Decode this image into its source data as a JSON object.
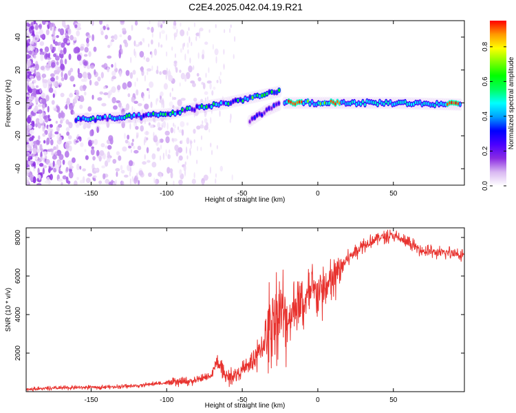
{
  "figure": {
    "title": "C2E4.2025.042.04.19.R21"
  },
  "chart_data": [
    {
      "type": "heatmap",
      "name": "spectrogram",
      "xlabel": "Height of straight line (km)",
      "ylabel": "Frequency (Hz)",
      "xlim": [
        -193,
        97
      ],
      "ylim": [
        -50,
        50
      ],
      "xticks": [
        -150,
        -100,
        -50,
        0,
        50
      ],
      "xtick_labels": [
        "-150",
        "-100",
        "-50",
        "0",
        "50"
      ],
      "yticks": [
        -40,
        -20,
        0,
        20,
        40
      ],
      "ytick_labels": [
        "-40",
        "-20",
        "0",
        "20",
        "40"
      ],
      "ridge": [
        {
          "x": -160,
          "y": -10
        },
        {
          "x": -130,
          "y": -9
        },
        {
          "x": -100,
          "y": -7
        },
        {
          "x": -80,
          "y": -3
        },
        {
          "x": -60,
          "y": 0
        },
        {
          "x": -40,
          "y": 4
        },
        {
          "x": -25,
          "y": 7
        },
        {
          "x": -22,
          "y": 0
        },
        {
          "x": 0,
          "y": 0
        },
        {
          "x": 50,
          "y": 0
        },
        {
          "x": 95,
          "y": -1
        }
      ],
      "ridge_branch": [
        {
          "x": -45,
          "y": -11
        },
        {
          "x": -35,
          "y": -5
        },
        {
          "x": -25,
          "y": -1
        }
      ],
      "colorbar": {
        "label": "Normalized spectral amplitude",
        "range": [
          0.0,
          0.95
        ],
        "ticks": [
          0.0,
          0.2,
          0.4,
          0.6,
          0.8
        ],
        "tick_labels": [
          "0.0",
          "0.2",
          "0.4",
          "0.6",
          "0.8"
        ],
        "colors": [
          "#ffffff",
          "#d9b8f2",
          "#8a2be2",
          "#4b00ff",
          "#0000ff",
          "#00a0ff",
          "#00ffff",
          "#00ff60",
          "#00ff00",
          "#80ff00",
          "#ffff00",
          "#ff9900",
          "#ff0000"
        ]
      }
    },
    {
      "type": "line",
      "name": "snr",
      "xlabel": "Height of straight line (km)",
      "ylabel": "SNR (10 * v/v)",
      "xlim": [
        -193,
        97
      ],
      "ylim": [
        0,
        8500
      ],
      "xticks": [
        -150,
        -100,
        -50,
        0,
        50
      ],
      "xtick_labels": [
        "-150",
        "-100",
        "-50",
        "0",
        "50"
      ],
      "yticks": [
        2000,
        4000,
        6000,
        8000
      ],
      "ytick_labels": [
        "2000",
        "4000",
        "6000",
        "8000"
      ],
      "color": "#e8322e",
      "series": [
        {
          "name": "SNR",
          "x": [
            -193,
            -180,
            -160,
            -140,
            -120,
            -110,
            -100,
            -90,
            -80,
            -70,
            -67,
            -60,
            -50,
            -40,
            -35,
            -30,
            -25,
            -20,
            -15,
            -10,
            -5,
            0,
            5,
            10,
            15,
            20,
            25,
            30,
            40,
            50,
            60,
            70,
            80,
            90,
            97
          ],
          "y": [
            130,
            160,
            210,
            240,
            300,
            400,
            450,
            500,
            580,
            850,
            1600,
            700,
            1100,
            1800,
            2700,
            3800,
            4300,
            3700,
            4500,
            4500,
            5000,
            5300,
            5200,
            5800,
            6400,
            6900,
            7300,
            7600,
            8000,
            8100,
            7700,
            7300,
            7200,
            7200,
            7100
          ]
        }
      ]
    }
  ]
}
